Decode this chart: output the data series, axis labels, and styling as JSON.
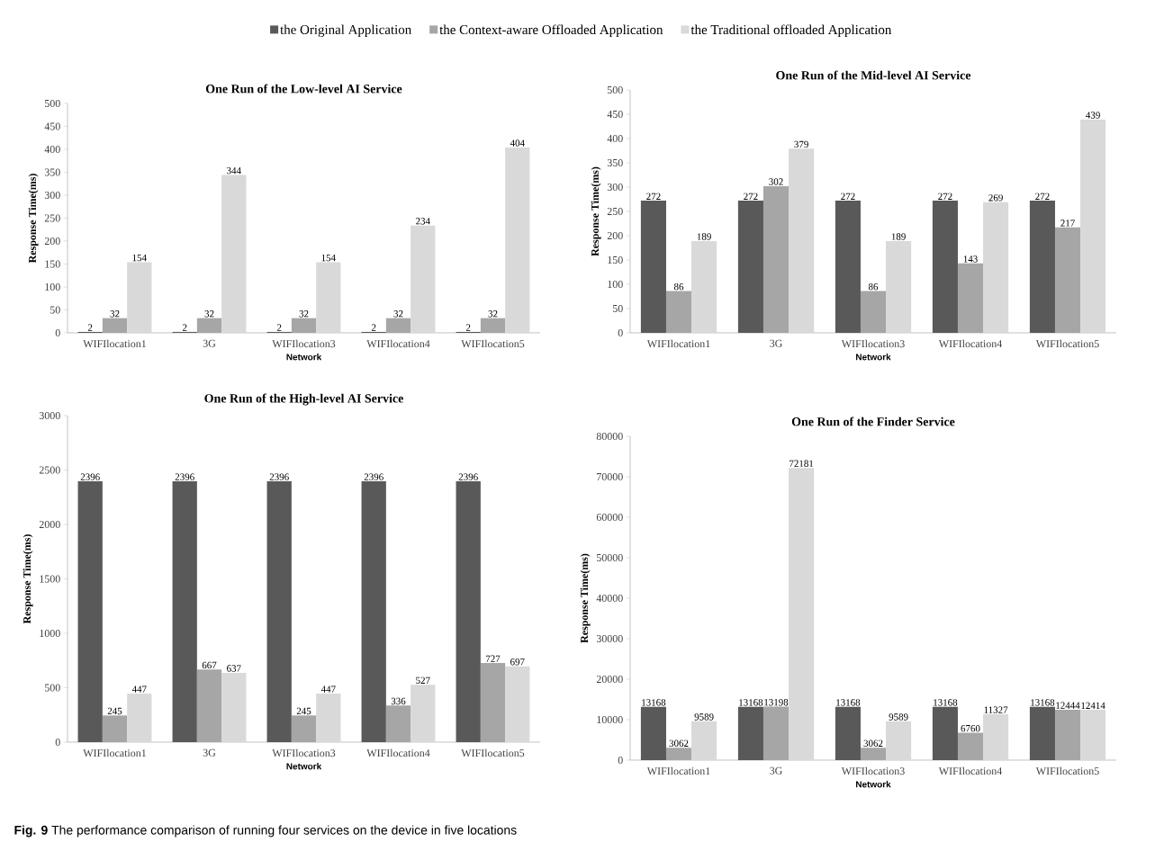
{
  "chart_data": [
    {
      "type": "bar",
      "title": "One Run of the Low-level AI Service",
      "xlabel": "Network",
      "ylabel": "Response Time(ms)",
      "categories": [
        "WIFIlocation1",
        "3G",
        "WIFIlocation3",
        "WIFIlocation4",
        "WIFIlocation5"
      ],
      "series": [
        {
          "name": "the Original Application",
          "color": "#595959",
          "values": [
            2,
            2,
            2,
            2,
            2
          ]
        },
        {
          "name": "the Context-aware Offloaded Application",
          "color": "#a6a6a6",
          "values": [
            32,
            32,
            32,
            32,
            32
          ]
        },
        {
          "name": "the Traditional offloaded Application",
          "color": "#d9d9d9",
          "values": [
            154,
            344,
            154,
            234,
            404
          ]
        }
      ],
      "ylim": [
        0,
        500
      ],
      "yticks": [
        0,
        50,
        100,
        150,
        200,
        250,
        300,
        350,
        400,
        450,
        500
      ],
      "data_labels": true,
      "legend": "top",
      "grid": false
    },
    {
      "type": "bar",
      "title": "One Run of the Mid-level AI Service",
      "xlabel": "Network",
      "ylabel": "Response Time(ms)",
      "categories": [
        "WIFIlocation1",
        "3G",
        "WIFIlocation3",
        "WIFIlocation4",
        "WIFIlocation5"
      ],
      "series": [
        {
          "color": "#595959",
          "values": [
            272,
            272,
            272,
            272,
            272
          ]
        },
        {
          "color": "#a6a6a6",
          "values": [
            86,
            302,
            86,
            143,
            217
          ]
        },
        {
          "color": "#d9d9d9",
          "values": [
            189,
            379,
            189,
            269,
            439
          ]
        }
      ],
      "ylim": [
        0,
        500
      ],
      "yticks": [
        0,
        50,
        100,
        150,
        200,
        250,
        300,
        350,
        400,
        450,
        500
      ],
      "data_labels": true,
      "grid": false
    },
    {
      "type": "bar",
      "title": "One Run of the  High-level AI Service",
      "xlabel": "Network",
      "ylabel": "Response Time(ms)",
      "categories": [
        "WIFIlocation1",
        "3G",
        "WIFIlocation3",
        "WIFIlocation4",
        "WIFIlocation5"
      ],
      "series": [
        {
          "color": "#595959",
          "values": [
            2396,
            2396,
            2396,
            2396,
            2396
          ]
        },
        {
          "color": "#a6a6a6",
          "values": [
            245,
            667,
            245,
            336,
            727
          ]
        },
        {
          "color": "#d9d9d9",
          "values": [
            447,
            637,
            447,
            527,
            697
          ]
        }
      ],
      "ylim": [
        0,
        3000
      ],
      "yticks": [
        0,
        500,
        1000,
        1500,
        2000,
        2500,
        3000
      ],
      "data_labels": true,
      "grid": false
    },
    {
      "type": "bar",
      "title": "One Run of the Finder Service",
      "xlabel": "Network",
      "ylabel": "Response Time(ms)",
      "categories": [
        "WIFIlocation1",
        "3G",
        "WIFIlocation3",
        "WIFIlocation4",
        "WIFIlocation5"
      ],
      "series": [
        {
          "color": "#595959",
          "values": [
            13168,
            13168,
            13168,
            13168,
            13168
          ]
        },
        {
          "color": "#a6a6a6",
          "values": [
            3062,
            13198,
            3062,
            6760,
            12444
          ]
        },
        {
          "color": "#d9d9d9",
          "values": [
            9589,
            72181,
            9589,
            11327,
            12414
          ]
        }
      ],
      "ylim": [
        0,
        80000
      ],
      "yticks": [
        0,
        10000,
        20000,
        30000,
        40000,
        50000,
        60000,
        70000,
        80000
      ],
      "data_labels": true,
      "grid": false,
      "annotations": [
        "**Fig. 9** The performance comparison of running four services on the device in five locations"
      ]
    }
  ]
}
